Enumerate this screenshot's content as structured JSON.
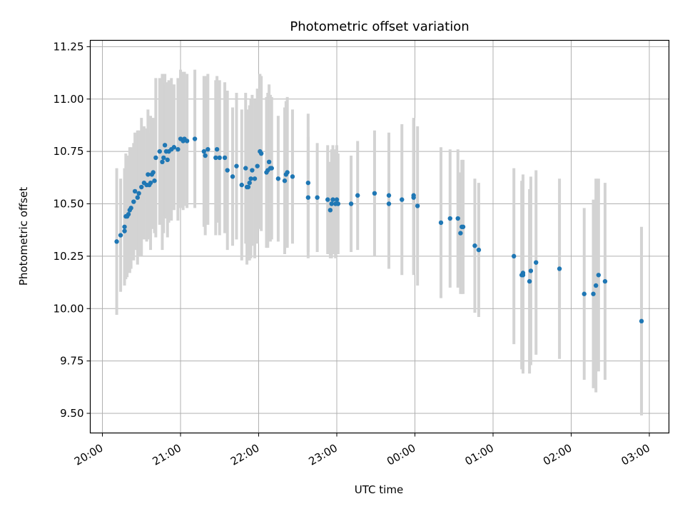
{
  "chart_data": {
    "type": "scatter",
    "title": "Photometric offset variation",
    "xlabel": "UTC time",
    "ylabel": "Photometric offset",
    "x_tick_labels": [
      "20:00",
      "21:00",
      "22:00",
      "23:00",
      "00:00",
      "01:00",
      "02:00",
      "03:00"
    ],
    "y_tick_labels": [
      "9.50",
      "9.75",
      "10.00",
      "10.25",
      "10.50",
      "10.75",
      "11.00",
      "11.25"
    ],
    "grid": true,
    "colors": {
      "points": "#1f77b4",
      "errorbars": "#d3d3d3",
      "grid": "#b0b0b0"
    },
    "series": [
      {
        "x": [
          "20:11",
          "20:14",
          "20:17",
          "20:17",
          "20:18",
          "20:19",
          "20:20",
          "20:21",
          "20:22",
          "20:24",
          "20:25",
          "20:27",
          "20:28",
          "20:30",
          "20:32",
          "20:34",
          "20:35",
          "20:36",
          "20:37",
          "20:38",
          "20:39",
          "20:40",
          "20:41",
          "20:44",
          "20:46",
          "20:47",
          "20:48",
          "20:49",
          "20:50",
          "20:51",
          "20:53",
          "20:55",
          "20:58",
          "21:00",
          "21:02",
          "21:03",
          "21:05",
          "21:11",
          "21:18",
          "21:19",
          "21:21",
          "21:27",
          "21:28",
          "21:30",
          "21:34",
          "21:36",
          "21:40",
          "21:43",
          "21:47",
          "21:50",
          "21:51",
          "21:52",
          "21:53",
          "21:54",
          "21:55",
          "21:57",
          "21:59",
          "22:01",
          "22:02",
          "22:06",
          "22:07",
          "22:08",
          "22:09",
          "22:10",
          "22:15",
          "22:20",
          "22:21",
          "22:22",
          "22:26",
          "22:38",
          "22:38",
          "22:45",
          "22:53",
          "22:55",
          "22:56",
          "22:57",
          "22:59",
          "23:00",
          "23:01",
          "23:11",
          "23:16",
          "23:29",
          "23:40",
          "23:40",
          "23:50",
          "23:59",
          "23:59",
          "00:02",
          "00:20",
          "00:27",
          "00:33",
          "00:35",
          "00:36",
          "00:37",
          "00:46",
          "00:49",
          "01:16",
          "01:22",
          "01:23",
          "01:23",
          "01:28",
          "01:29",
          "01:33",
          "01:51",
          "02:10",
          "02:17",
          "02:19",
          "02:21",
          "02:26",
          "02:54"
        ],
        "y": [
          10.32,
          10.35,
          10.37,
          10.39,
          10.44,
          10.44,
          10.45,
          10.47,
          10.48,
          10.51,
          10.56,
          10.53,
          10.55,
          10.58,
          10.6,
          10.59,
          10.64,
          10.59,
          10.6,
          10.64,
          10.65,
          10.61,
          10.72,
          10.75,
          10.7,
          10.72,
          10.78,
          10.75,
          10.71,
          10.75,
          10.76,
          10.77,
          10.76,
          10.81,
          10.8,
          10.81,
          10.8,
          10.81,
          10.75,
          10.73,
          10.76,
          10.72,
          10.76,
          10.72,
          10.72,
          10.66,
          10.63,
          10.68,
          10.59,
          10.67,
          10.58,
          10.58,
          10.6,
          10.62,
          10.66,
          10.62,
          10.68,
          10.75,
          10.74,
          10.65,
          10.66,
          10.7,
          10.67,
          10.67,
          10.62,
          10.61,
          10.64,
          10.65,
          10.63,
          10.6,
          10.53,
          10.53,
          10.52,
          10.47,
          10.5,
          10.52,
          10.5,
          10.52,
          10.5,
          10.5,
          10.54,
          10.55,
          10.54,
          10.5,
          10.52,
          10.54,
          10.53,
          10.49,
          10.41,
          10.43,
          10.43,
          10.36,
          10.39,
          10.39,
          10.3,
          10.28,
          10.25,
          10.16,
          10.17,
          10.16,
          10.13,
          10.18,
          10.22,
          10.19,
          10.07,
          10.07,
          10.11,
          10.16,
          10.13,
          9.94
        ],
        "err": [
          0.35,
          0.27,
          0.25,
          0.28,
          0.3,
          0.29,
          0.21,
          0.3,
          0.29,
          0.28,
          0.28,
          0.32,
          0.3,
          0.33,
          0.27,
          0.27,
          0.31,
          0.25,
          0.32,
          0.26,
          0.26,
          0.25,
          0.38,
          0.35,
          0.42,
          0.36,
          0.34,
          0.32,
          0.37,
          0.34,
          0.34,
          0.3,
          0.34,
          0.33,
          0.33,
          0.32,
          0.32,
          0.33,
          0.36,
          0.38,
          0.36,
          0.37,
          0.35,
          0.37,
          0.36,
          0.38,
          0.33,
          0.35,
          0.36,
          0.36,
          0.37,
          0.35,
          0.37,
          0.38,
          0.36,
          0.38,
          0.37,
          0.37,
          0.37,
          0.36,
          0.37,
          0.37,
          0.35,
          0.34,
          0.3,
          0.35,
          0.35,
          0.36,
          0.32,
          0.33,
          0.29,
          0.26,
          0.26,
          0.23,
          0.26,
          0.26,
          0.26,
          0.26,
          0.24,
          0.23,
          0.26,
          0.3,
          0.3,
          0.31,
          0.36,
          0.37,
          0.37,
          0.38,
          0.36,
          0.33,
          0.33,
          0.29,
          0.32,
          0.32,
          0.32,
          0.32,
          0.42,
          0.45,
          0.47,
          0.47,
          0.44,
          0.45,
          0.44,
          0.43,
          0.41,
          0.45,
          0.51,
          0.46,
          0.47,
          0.45
        ]
      }
    ]
  }
}
